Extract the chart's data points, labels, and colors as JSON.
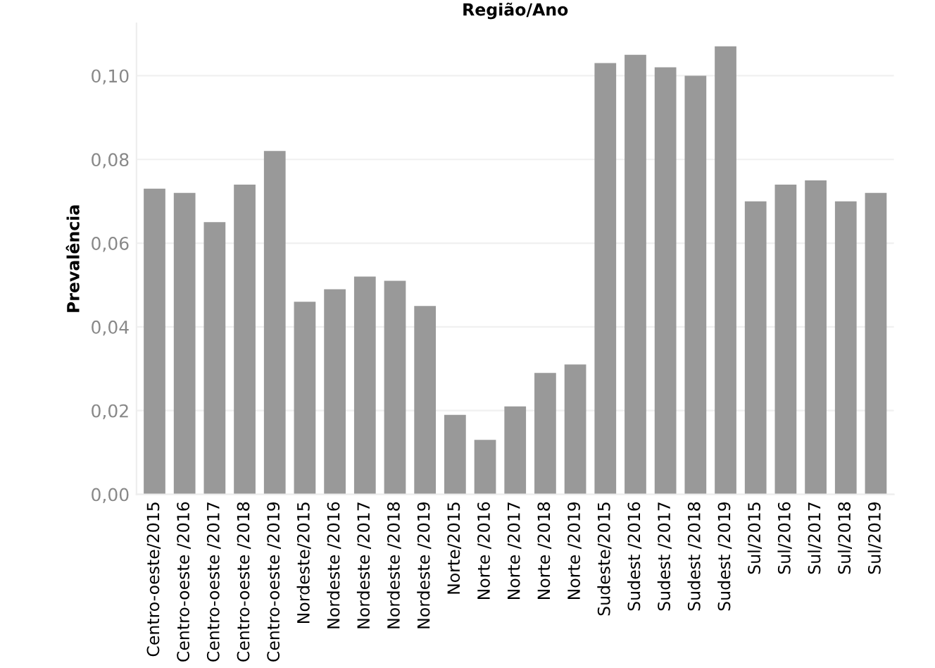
{
  "chart_data": {
    "type": "bar",
    "title": "Região/Ano",
    "ylabel": "Prevalência",
    "categories": [
      "Centro-oeste/2015",
      "Centro-oeste /2016",
      "Centro-oeste /2017",
      "Centro-oeste /2018",
      "Centro-oeste /2019",
      "Nordeste/2015",
      "Nordeste /2016",
      "Nordeste /2017",
      "Nordeste /2018",
      "Nordeste /2019",
      "Norte/2015",
      "Norte /2016",
      "Norte /2017",
      "Norte /2018",
      "Norte /2019",
      "Sudeste/2015",
      "Sudest /2016",
      "Sudest /2017",
      "Sudest /2018",
      "Sudest /2019",
      "Sul/2015",
      "Sul/2016",
      "Sul/2017",
      "Sul/2018",
      "Sul/2019"
    ],
    "values": [
      0.073,
      0.072,
      0.065,
      0.074,
      0.082,
      0.046,
      0.049,
      0.052,
      0.051,
      0.045,
      0.019,
      0.013,
      0.021,
      0.029,
      0.031,
      0.103,
      0.105,
      0.102,
      0.1,
      0.107,
      0.07,
      0.074,
      0.075,
      0.07,
      0.072
    ],
    "color": "#999999",
    "ylim": [
      0,
      0.1125
    ],
    "yticks": [
      {
        "value": 0,
        "label": "0,00"
      },
      {
        "value": 0.02,
        "label": "0,02"
      },
      {
        "value": 0.04,
        "label": "0,04"
      },
      {
        "value": 0.06,
        "label": "0,06"
      },
      {
        "value": 0.08,
        "label": "0,08"
      },
      {
        "value": 0.1,
        "label": "0,10"
      }
    ],
    "grid": "y"
  }
}
